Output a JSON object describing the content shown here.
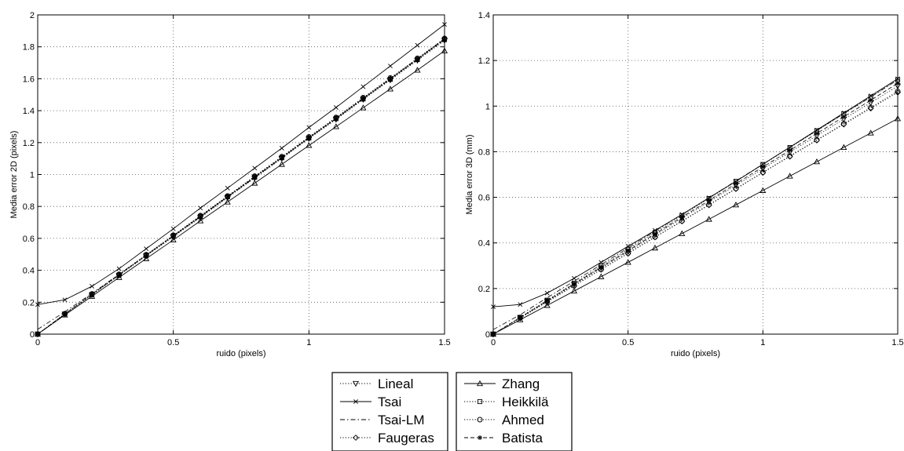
{
  "chart_data": [
    {
      "type": "line",
      "title": "",
      "xlabel": "ruido (pixels)",
      "ylabel": "Media error 2D (pixels)",
      "xlim": [
        0,
        1.5
      ],
      "ylim": [
        0,
        2
      ],
      "xticks": [
        "0",
        "0.5",
        "1",
        "1.5"
      ],
      "yticks": [
        "0",
        "0.2",
        "0.4",
        "0.6",
        "0.8",
        "1",
        "1.2",
        "1.4",
        "1.6",
        "1.8",
        "2"
      ],
      "grid": true,
      "x": [
        0,
        0.1,
        0.2,
        0.3,
        0.4,
        0.5,
        0.6,
        0.7,
        0.8,
        0.9,
        1.0,
        1.1,
        1.2,
        1.3,
        1.4,
        1.5
      ],
      "series": [
        {
          "name": "Lineal",
          "values": [
            0.0,
            0.125,
            0.245,
            0.368,
            0.49,
            0.61,
            0.73,
            0.855,
            0.978,
            1.1,
            1.225,
            1.345,
            1.47,
            1.592,
            1.715,
            1.84
          ]
        },
        {
          "name": "Tsai",
          "values": [
            0.185,
            0.215,
            0.3,
            0.41,
            0.535,
            0.66,
            0.79,
            0.915,
            1.04,
            1.165,
            1.295,
            1.42,
            1.55,
            1.68,
            1.81,
            1.94
          ]
        },
        {
          "name": "Tsai-LM",
          "values": [
            0.03,
            0.14,
            0.255,
            0.375,
            0.495,
            0.615,
            0.735,
            0.86,
            0.98,
            1.105,
            1.23,
            1.35,
            1.475,
            1.6,
            1.725,
            1.85
          ]
        },
        {
          "name": "Faugeras",
          "values": [
            0.0,
            0.127,
            0.25,
            0.372,
            0.496,
            0.618,
            0.74,
            0.862,
            0.988,
            1.11,
            1.232,
            1.355,
            1.478,
            1.6,
            1.725,
            1.85
          ]
        },
        {
          "name": "Zhang",
          "values": [
            0.0,
            0.12,
            0.237,
            0.355,
            0.473,
            0.59,
            0.71,
            0.828,
            0.946,
            1.064,
            1.182,
            1.3,
            1.418,
            1.536,
            1.654,
            1.775
          ]
        },
        {
          "name": "Heikkilä",
          "values": [
            0.0,
            0.126,
            0.248,
            0.37,
            0.493,
            0.615,
            0.737,
            0.86,
            0.983,
            1.105,
            1.228,
            1.35,
            1.473,
            1.596,
            1.72,
            1.845
          ]
        },
        {
          "name": "Ahmed",
          "values": [
            0.0,
            0.128,
            0.252,
            0.375,
            0.498,
            0.62,
            0.743,
            0.866,
            0.99,
            1.112,
            1.236,
            1.358,
            1.482,
            1.605,
            1.728,
            1.853
          ]
        },
        {
          "name": "Batista",
          "values": [
            0.0,
            0.126,
            0.249,
            0.371,
            0.494,
            0.616,
            0.738,
            0.861,
            0.984,
            1.106,
            1.229,
            1.352,
            1.475,
            1.598,
            1.721,
            1.846
          ]
        }
      ]
    },
    {
      "type": "line",
      "title": "",
      "xlabel": "ruido (pixels)",
      "ylabel": "Media error 3D (mm)",
      "xlim": [
        0,
        1.5
      ],
      "ylim": [
        0,
        1.4
      ],
      "xticks": [
        "0",
        "0.5",
        "1",
        "1.5"
      ],
      "yticks": [
        "0",
        "0.2",
        "0.4",
        "0.6",
        "0.8",
        "1",
        "1.2",
        "1.4"
      ],
      "grid": true,
      "x": [
        0,
        0.1,
        0.2,
        0.3,
        0.4,
        0.5,
        0.6,
        0.7,
        0.8,
        0.9,
        1.0,
        1.1,
        1.2,
        1.3,
        1.4,
        1.5
      ],
      "series": [
        {
          "name": "Lineal",
          "values": [
            0.0,
            0.072,
            0.145,
            0.218,
            0.29,
            0.362,
            0.435,
            0.508,
            0.58,
            0.653,
            0.725,
            0.798,
            0.87,
            0.943,
            1.015,
            1.088
          ]
        },
        {
          "name": "Tsai",
          "values": [
            0.12,
            0.13,
            0.18,
            0.245,
            0.315,
            0.385,
            0.455,
            0.525,
            0.598,
            0.67,
            0.745,
            0.82,
            0.895,
            0.97,
            1.045,
            1.12
          ]
        },
        {
          "name": "Tsai-LM",
          "values": [
            0.02,
            0.085,
            0.16,
            0.232,
            0.305,
            0.378,
            0.452,
            0.525,
            0.598,
            0.672,
            0.745,
            0.82,
            0.893,
            0.967,
            1.04,
            1.115
          ]
        },
        {
          "name": "Faugeras",
          "values": [
            0.0,
            0.07,
            0.141,
            0.212,
            0.283,
            0.354,
            0.425,
            0.495,
            0.566,
            0.637,
            0.708,
            0.779,
            0.85,
            0.92,
            0.99,
            1.06
          ]
        },
        {
          "name": "Zhang",
          "values": [
            0.0,
            0.063,
            0.126,
            0.189,
            0.252,
            0.315,
            0.378,
            0.441,
            0.504,
            0.567,
            0.63,
            0.693,
            0.756,
            0.819,
            0.882,
            0.945
          ]
        },
        {
          "name": "Heikkilä",
          "values": [
            0.0,
            0.074,
            0.149,
            0.223,
            0.298,
            0.372,
            0.446,
            0.52,
            0.595,
            0.67,
            0.744,
            0.818,
            0.892,
            0.966,
            1.04,
            1.115
          ]
        },
        {
          "name": "Ahmed",
          "values": [
            0.0,
            0.071,
            0.142,
            0.213,
            0.284,
            0.355,
            0.426,
            0.497,
            0.568,
            0.639,
            0.71,
            0.781,
            0.852,
            0.923,
            0.994,
            1.065
          ]
        },
        {
          "name": "Batista",
          "values": [
            0.0,
            0.073,
            0.146,
            0.22,
            0.293,
            0.366,
            0.44,
            0.513,
            0.586,
            0.66,
            0.733,
            0.806,
            0.88,
            0.953,
            1.026,
            1.1
          ]
        }
      ]
    }
  ],
  "legend": {
    "left": [
      {
        "label": "Lineal",
        "marker": "triangle-down",
        "dash": "dotted"
      },
      {
        "label": "Tsai",
        "marker": "x",
        "dash": "solid"
      },
      {
        "label": "Tsai-LM",
        "marker": "none",
        "dash": "dashdot"
      },
      {
        "label": "Faugeras",
        "marker": "diamond",
        "dash": "dotted"
      }
    ],
    "right": [
      {
        "label": "Zhang",
        "marker": "triangle-up",
        "dash": "solid"
      },
      {
        "label": "Heikkilä",
        "marker": "square",
        "dash": "dotted"
      },
      {
        "label": "Ahmed",
        "marker": "circle",
        "dash": "dotted"
      },
      {
        "label": "Batista",
        "marker": "star",
        "dash": "dashed"
      }
    ]
  },
  "colors": {
    "line": "#000000",
    "grid": "#555555",
    "background": "#ffffff"
  }
}
